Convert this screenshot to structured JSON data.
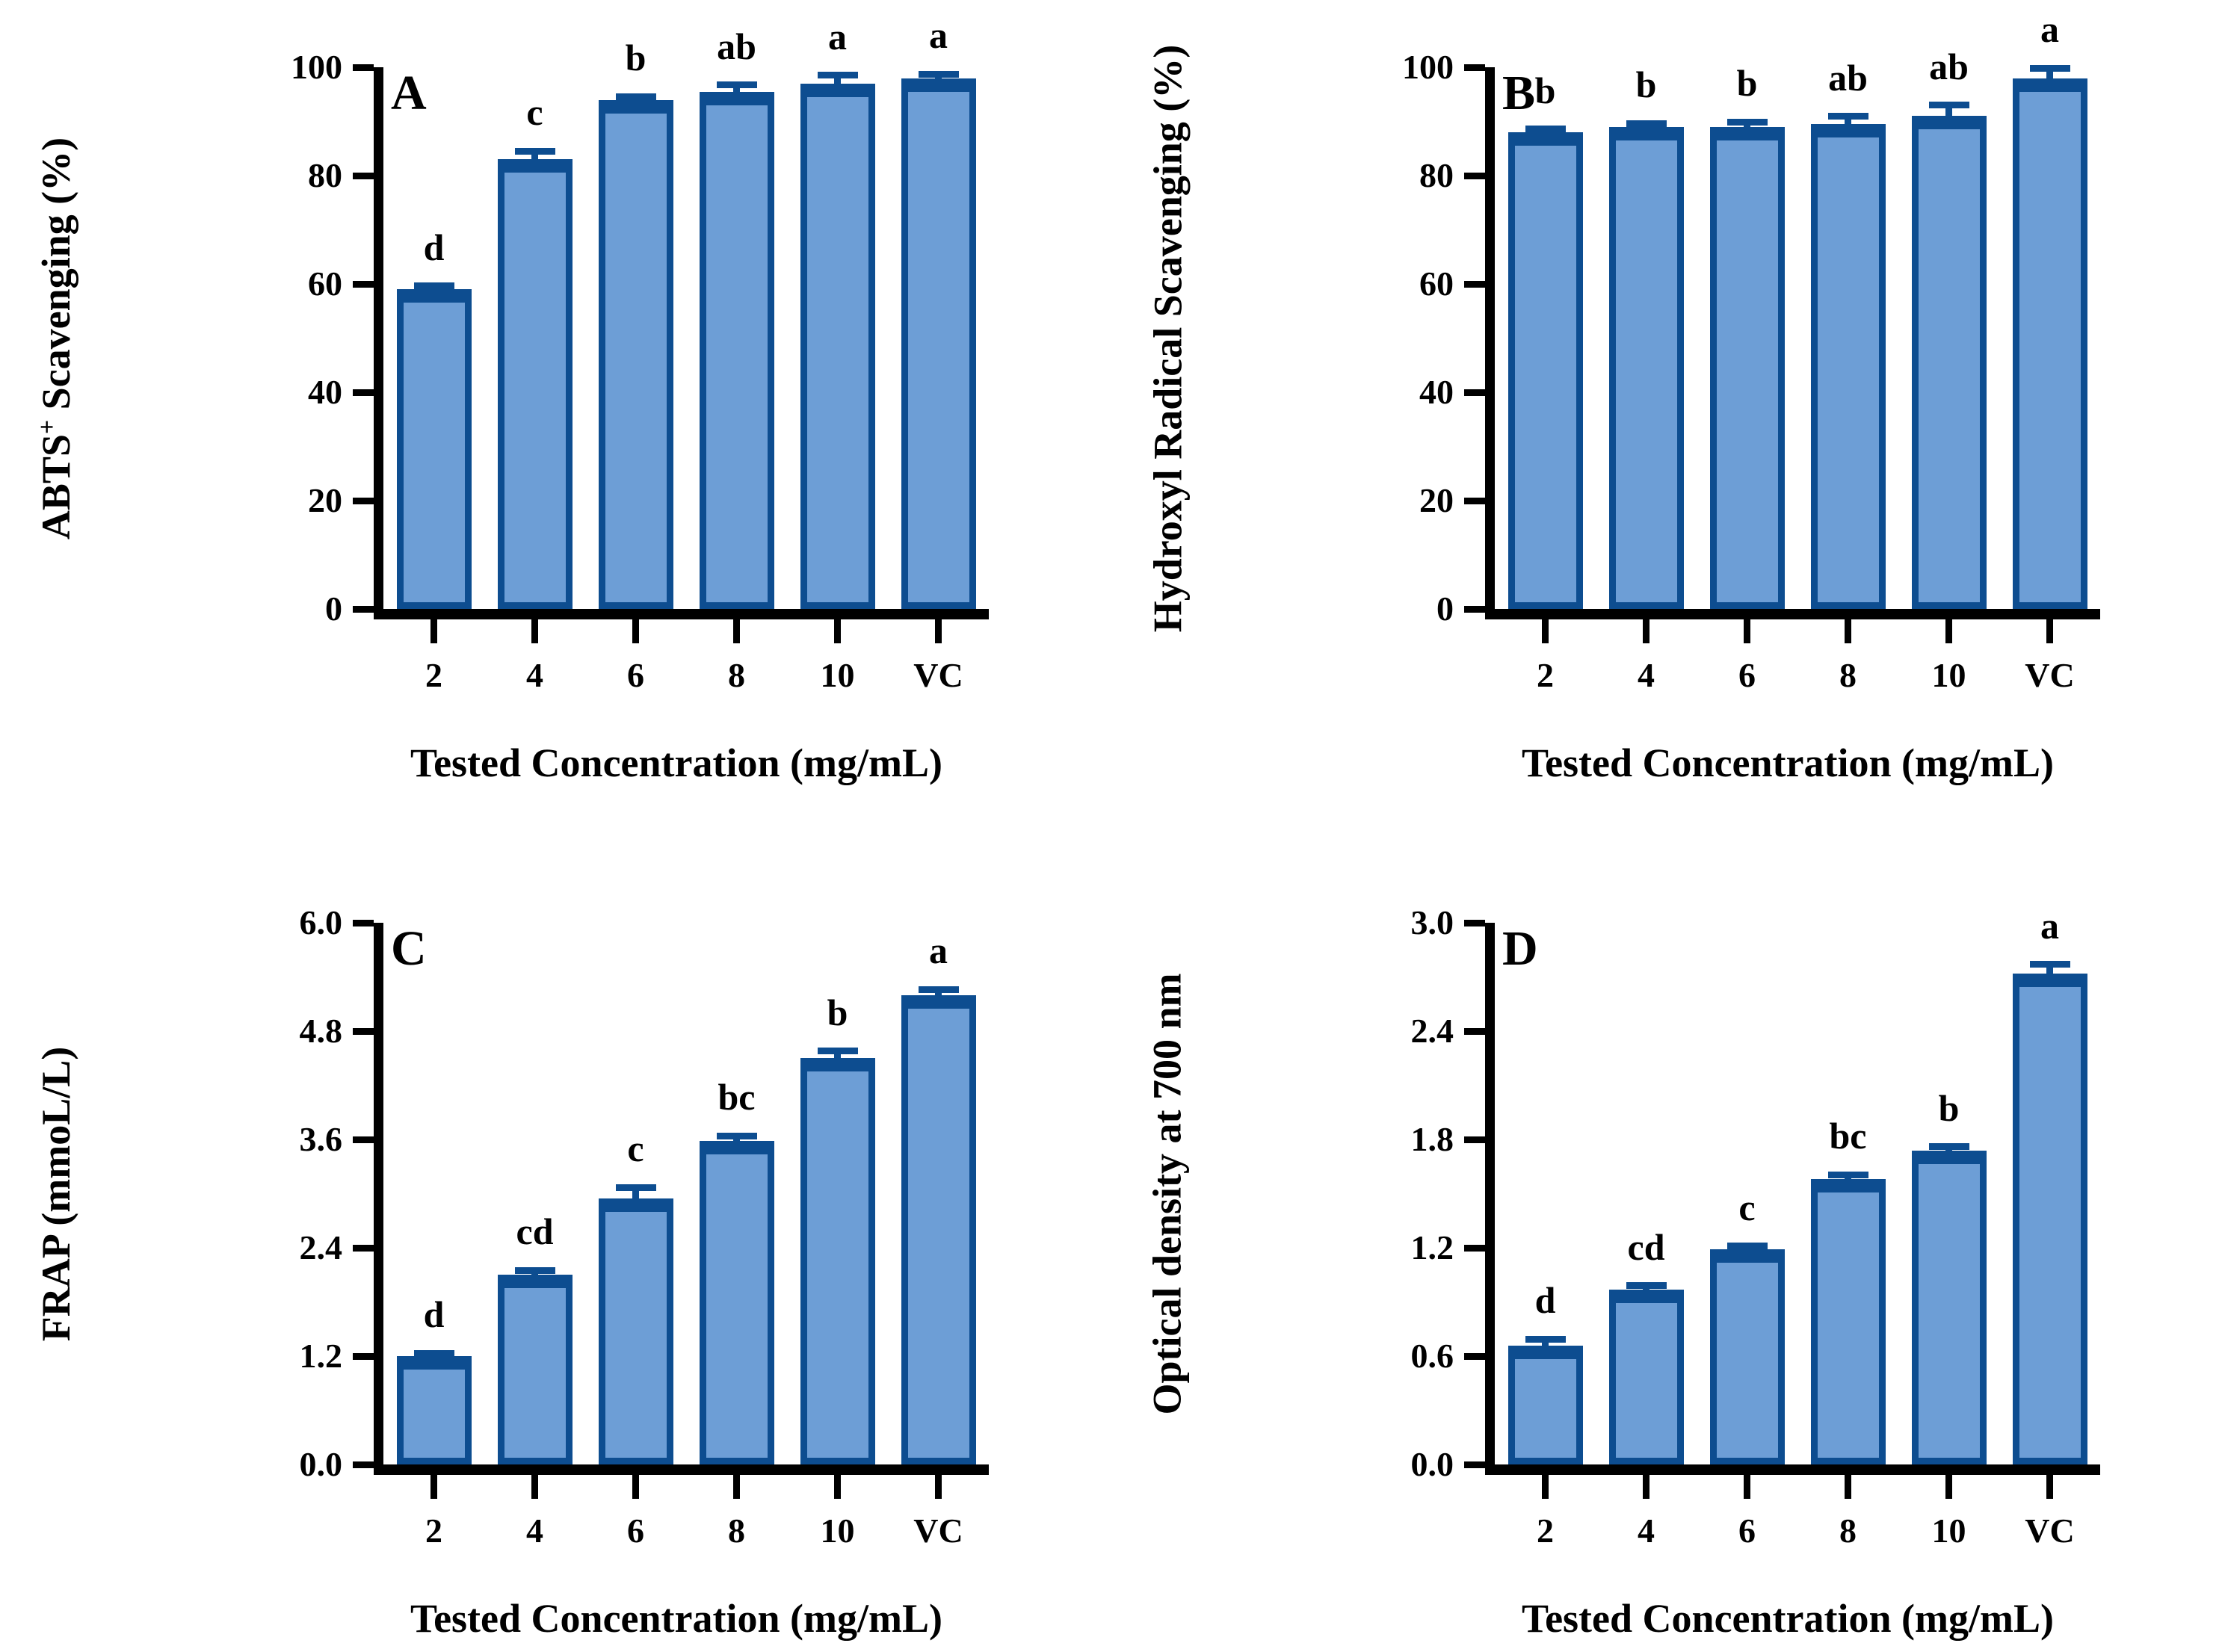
{
  "figure": {
    "background": "#FFFFFF",
    "bar_fill": "#6D9ED6",
    "bar_border": "#0D4D90",
    "axis_color": "#000000",
    "text_color": "#000000"
  },
  "chart_data": [
    {
      "panel": "A",
      "type": "bar",
      "ylabel": "ABTS+ Scavenging (%)",
      "ylabel_parts": {
        "pre": "ABTS",
        "sup": "+",
        "post": " Scavenging (%)"
      },
      "xlabel": "Tested Concentration (mg/mL)",
      "categories": [
        "2",
        "4",
        "6",
        "8",
        "10",
        "VC"
      ],
      "values": [
        59,
        83,
        94,
        95.5,
        97,
        98
      ],
      "errors": [
        0.6,
        1.5,
        0.6,
        1.2,
        1.5,
        0.7
      ],
      "letters": [
        "d",
        "c",
        "b",
        "ab",
        "a",
        "a"
      ],
      "ylim": [
        0,
        100
      ],
      "yticks": [
        0,
        20,
        40,
        60,
        80,
        100
      ],
      "ytick_decimals": 0,
      "grid": false,
      "legend": "none"
    },
    {
      "panel": "B",
      "type": "bar",
      "ylabel": "Hydroxyl Radical Scavenging (%)",
      "ylabel_parts": {
        "pre": "Hydroxyl Radical Scavenging (%)",
        "sup": "",
        "post": ""
      },
      "xlabel": "Tested Concentration (mg/mL)",
      "categories": [
        "2",
        "4",
        "6",
        "8",
        "10",
        "VC"
      ],
      "values": [
        88,
        89,
        89,
        89.5,
        91,
        98
      ],
      "errors": [
        0.6,
        0.6,
        0.9,
        1.4,
        2.0,
        1.8
      ],
      "letters": [
        "b",
        "b",
        "b",
        "ab",
        "ab",
        "a"
      ],
      "ylim": [
        0,
        100
      ],
      "yticks": [
        0,
        20,
        40,
        60,
        80,
        100
      ],
      "ytick_decimals": 0,
      "grid": false,
      "legend": "none"
    },
    {
      "panel": "C",
      "type": "bar",
      "ylabel": "FRAP (mmoL/L)",
      "ylabel_parts": {
        "pre": "FRAP (mmoL/L)",
        "sup": "",
        "post": ""
      },
      "xlabel": "Tested Concentration (mg/mL)",
      "categories": [
        "2",
        "4",
        "6",
        "8",
        "10",
        "VC"
      ],
      "values": [
        1.2,
        2.1,
        2.95,
        3.58,
        4.5,
        5.2
      ],
      "errors": [
        0.03,
        0.05,
        0.12,
        0.06,
        0.08,
        0.06
      ],
      "letters": [
        "d",
        "cd",
        "c",
        "bc",
        "b",
        "a"
      ],
      "ylim": [
        0,
        6.0
      ],
      "yticks": [
        0,
        1.2,
        2.4,
        3.6,
        4.8,
        6.0
      ],
      "ytick_decimals": 1,
      "grid": false,
      "legend": "none"
    },
    {
      "panel": "D",
      "type": "bar",
      "ylabel": "Optical density at 700 nm",
      "ylabel_parts": {
        "pre": "Optical density at 700 nm",
        "sup": "",
        "post": ""
      },
      "xlabel": "Tested Concentration (mg/mL)",
      "categories": [
        "2",
        "4",
        "6",
        "8",
        "10",
        "VC"
      ],
      "values": [
        0.66,
        0.97,
        1.19,
        1.58,
        1.74,
        2.72
      ],
      "errors": [
        0.035,
        0.02,
        0.02,
        0.025,
        0.02,
        0.05
      ],
      "letters": [
        "d",
        "cd",
        "c",
        "bc",
        "b",
        "a"
      ],
      "ylim": [
        0,
        3.0
      ],
      "yticks": [
        0,
        0.6,
        1.2,
        1.8,
        2.4,
        3.0
      ],
      "ytick_decimals": 1,
      "grid": false,
      "legend": "none"
    }
  ]
}
